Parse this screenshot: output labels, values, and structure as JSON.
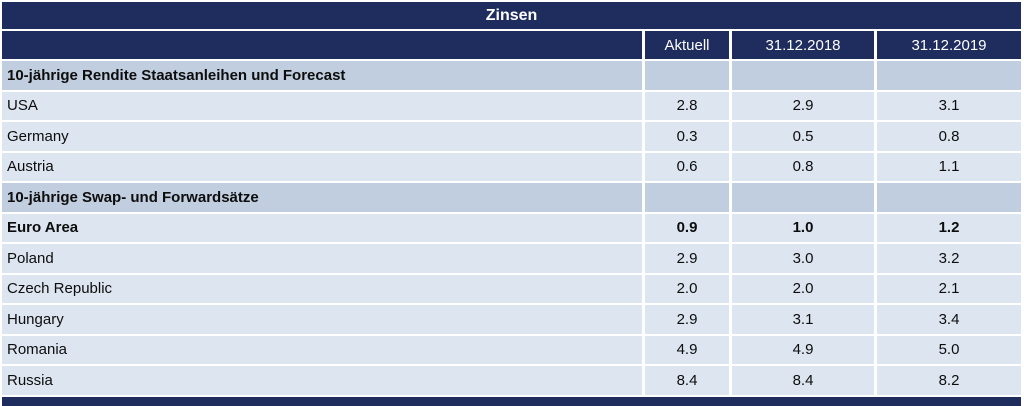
{
  "chart_data": {
    "type": "table",
    "title": "Zinsen",
    "columns": [
      "Aktuell",
      "31.12.2018",
      "31.12.2019"
    ],
    "sections": [
      {
        "header": "10-jährige Rendite Staatsanleihen und Forecast",
        "rows": [
          {
            "label": "USA",
            "values": [
              "2.8",
              "2.9",
              "3.1"
            ],
            "bold": false
          },
          {
            "label": "Germany",
            "values": [
              "0.3",
              "0.5",
              "0.8"
            ],
            "bold": false
          },
          {
            "label": "Austria",
            "values": [
              "0.6",
              "0.8",
              "1.1"
            ],
            "bold": false
          }
        ]
      },
      {
        "header": "10-jährige Swap- und Forwardsätze",
        "rows": [
          {
            "label": "Euro Area",
            "values": [
              "0.9",
              "1.0",
              "1.2"
            ],
            "bold": true
          },
          {
            "label": "Poland",
            "values": [
              "2.9",
              "3.0",
              "3.2"
            ],
            "bold": false
          },
          {
            "label": "Czech Republic",
            "values": [
              "2.0",
              "2.0",
              "2.1"
            ],
            "bold": false
          },
          {
            "label": "Hungary",
            "values": [
              "2.9",
              "3.1",
              "3.4"
            ],
            "bold": false
          },
          {
            "label": "Romania",
            "values": [
              "4.9",
              "4.9",
              "5.0"
            ],
            "bold": false
          },
          {
            "label": "Russia",
            "values": [
              "8.4",
              "8.4",
              "8.2"
            ],
            "bold": false
          }
        ]
      }
    ],
    "layout": {
      "legend": "none",
      "grid": "white-separators"
    }
  },
  "colors": {
    "navy": "#1f2c5e",
    "section_bg": "#c1cedf",
    "row_bg": "#dde6f0",
    "header_text": "#ffffff",
    "body_text": "#0d0d0d"
  }
}
